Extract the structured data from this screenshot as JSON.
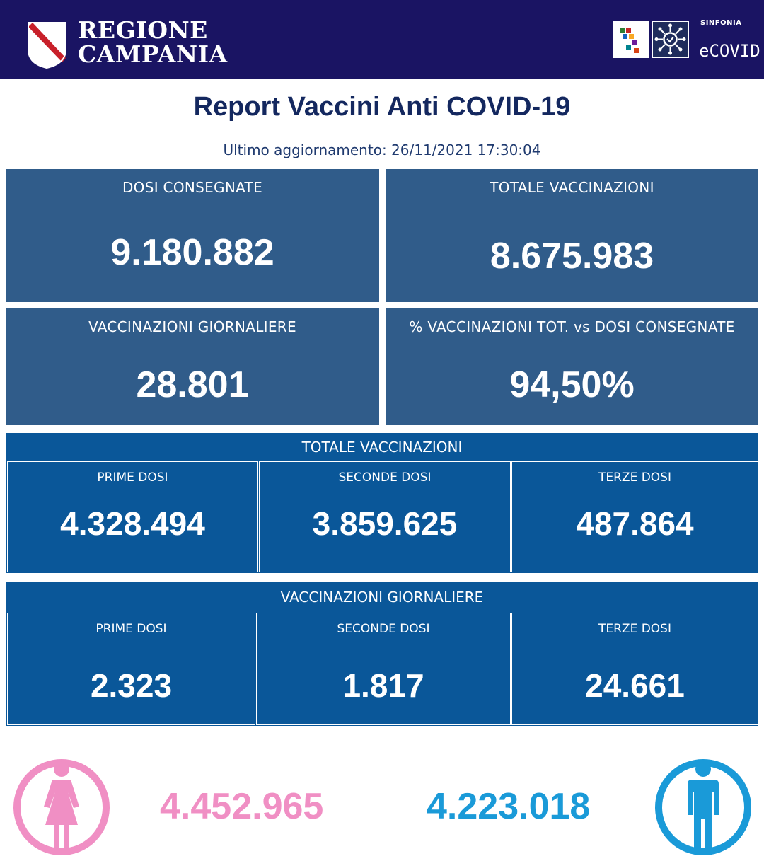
{
  "header": {
    "region_line1": "REGIONE",
    "region_line2": "CAMPANIA",
    "sinfonia_label": "SINFONIA",
    "ecovid_label": "eCOVID",
    "header_bg": "#1a1463"
  },
  "title": "Report Vaccini Anti COVID-19",
  "last_update": "Ultimo aggiornamento: 26/11/2021  17:30:04",
  "cards": [
    {
      "label": "DOSI  CONSEGNATE",
      "value": "9.180.882"
    },
    {
      "label": "TOTALE VACCINAZIONI",
      "value": "8.675.983"
    },
    {
      "label": "VACCINAZIONI GIORNALIERE",
      "value": "28.801"
    },
    {
      "label": "% VACCINAZIONI TOT. vs DOSI CONSEGNATE",
      "value": "94,50%"
    }
  ],
  "totale_vaccinazioni": {
    "title": "TOTALE VACCINAZIONI",
    "cells": [
      {
        "label": "PRIME DOSI",
        "value": "4.328.494"
      },
      {
        "label": "SECONDE DOSI",
        "value": "3.859.625"
      },
      {
        "label": "TERZE DOSI",
        "value": "487.864"
      }
    ]
  },
  "vaccinazioni_giornaliere": {
    "title": "VACCINAZIONI GIORNALIERE",
    "cells": [
      {
        "label": "PRIME DOSI",
        "value": "2.323"
      },
      {
        "label": "SECONDE DOSI",
        "value": "1.817"
      },
      {
        "label": "TERZE DOSI",
        "value": "24.661"
      }
    ]
  },
  "gender": {
    "female_value": "4.452.965",
    "male_value": "4.223.018",
    "female_color": "#f08fc4",
    "male_color": "#1a9ad8",
    "female_icon": "female-person-icon",
    "male_icon": "male-person-icon"
  },
  "colors": {
    "card_bg": "#305c8a",
    "section_bg": "#0a5799",
    "title_color": "#14285f"
  }
}
